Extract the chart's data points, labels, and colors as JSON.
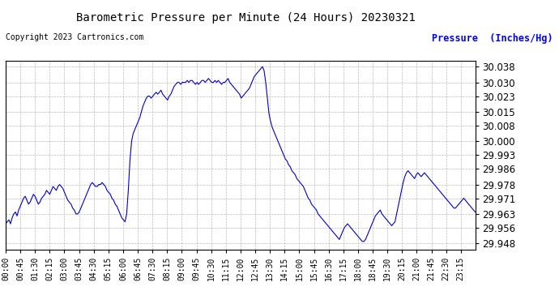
{
  "title": "Barometric Pressure per Minute (24 Hours) 20230321",
  "copyright": "Copyright 2023 Cartronics.com",
  "ylabel": "Pressure  (Inches/Hg)",
  "line_color": "#0000cc",
  "bg_color": "#ffffff",
  "grid_color": "#aaaaaa",
  "ylim": [
    29.945,
    30.041
  ],
  "yticks": [
    29.948,
    29.956,
    29.963,
    29.971,
    29.978,
    29.986,
    29.993,
    30.0,
    30.008,
    30.015,
    30.023,
    30.03,
    30.038
  ],
  "xtick_labels": [
    "00:00",
    "00:45",
    "01:30",
    "02:15",
    "03:00",
    "03:45",
    "04:30",
    "05:15",
    "06:00",
    "06:45",
    "07:30",
    "08:15",
    "09:00",
    "09:45",
    "10:30",
    "11:15",
    "12:00",
    "12:45",
    "13:30",
    "14:15",
    "15:00",
    "15:45",
    "16:30",
    "17:15",
    "18:00",
    "18:45",
    "19:30",
    "20:15",
    "21:00",
    "21:45",
    "22:30",
    "23:15"
  ],
  "pressure_values": [
    29.958,
    29.959,
    29.96,
    29.958,
    29.961,
    29.963,
    29.964,
    29.962,
    29.965,
    29.967,
    29.969,
    29.971,
    29.972,
    29.97,
    29.968,
    29.969,
    29.971,
    29.973,
    29.972,
    29.97,
    29.968,
    29.969,
    29.971,
    29.972,
    29.973,
    29.975,
    29.974,
    29.973,
    29.975,
    29.977,
    29.976,
    29.975,
    29.977,
    29.978,
    29.977,
    29.976,
    29.974,
    29.972,
    29.97,
    29.969,
    29.968,
    29.966,
    29.965,
    29.963,
    29.963,
    29.964,
    29.966,
    29.968,
    29.97,
    29.972,
    29.974,
    29.976,
    29.978,
    29.979,
    29.978,
    29.977,
    29.977,
    29.978,
    29.978,
    29.979,
    29.978,
    29.977,
    29.975,
    29.974,
    29.973,
    29.971,
    29.97,
    29.968,
    29.967,
    29.965,
    29.963,
    29.961,
    29.96,
    29.959,
    29.963,
    29.975,
    29.99,
    30.0,
    30.004,
    30.006,
    30.008,
    30.01,
    30.012,
    30.015,
    30.018,
    30.02,
    30.022,
    30.023,
    30.023,
    30.022,
    30.023,
    30.024,
    30.025,
    30.024,
    30.025,
    30.026,
    30.024,
    30.023,
    30.022,
    30.021,
    30.023,
    30.024,
    30.026,
    30.028,
    30.029,
    30.03,
    30.03,
    30.029,
    30.03,
    30.03,
    30.03,
    30.031,
    30.03,
    30.031,
    30.031,
    30.03,
    30.029,
    30.03,
    30.029,
    30.03,
    30.031,
    30.031,
    30.03,
    30.031,
    30.032,
    30.031,
    30.03,
    30.03,
    30.031,
    30.03,
    30.031,
    30.03,
    30.029,
    30.03,
    30.03,
    30.031,
    30.032,
    30.03,
    30.029,
    30.028,
    30.027,
    30.026,
    30.025,
    30.024,
    30.022,
    30.023,
    30.024,
    30.025,
    30.026,
    30.027,
    30.029,
    30.031,
    30.033,
    30.034,
    30.035,
    30.036,
    30.037,
    30.038,
    30.036,
    30.03,
    30.022,
    30.014,
    30.01,
    30.007,
    30.005,
    30.003,
    30.001,
    29.999,
    29.997,
    29.995,
    29.993,
    29.991,
    29.99,
    29.988,
    29.987,
    29.985,
    29.984,
    29.983,
    29.981,
    29.98,
    29.979,
    29.978,
    29.977,
    29.975,
    29.973,
    29.971,
    29.97,
    29.968,
    29.967,
    29.966,
    29.965,
    29.963,
    29.962,
    29.961,
    29.96,
    29.959,
    29.958,
    29.957,
    29.956,
    29.955,
    29.954,
    29.953,
    29.952,
    29.951,
    29.95,
    29.952,
    29.954,
    29.956,
    29.957,
    29.958,
    29.957,
    29.956,
    29.955,
    29.954,
    29.953,
    29.952,
    29.951,
    29.95,
    29.949,
    29.949,
    29.95,
    29.952,
    29.954,
    29.956,
    29.958,
    29.96,
    29.962,
    29.963,
    29.964,
    29.965,
    29.963,
    29.962,
    29.961,
    29.96,
    29.959,
    29.958,
    29.957,
    29.958,
    29.959,
    29.963,
    29.967,
    29.971,
    29.975,
    29.979,
    29.982,
    29.984,
    29.985,
    29.984,
    29.983,
    29.982,
    29.981,
    29.983,
    29.984,
    29.983,
    29.982,
    29.983,
    29.984,
    29.983,
    29.982,
    29.981,
    29.98,
    29.979,
    29.978,
    29.977,
    29.976,
    29.975,
    29.974,
    29.973,
    29.972,
    29.971,
    29.97,
    29.969,
    29.968,
    29.967,
    29.966,
    29.966,
    29.967,
    29.968,
    29.969,
    29.97,
    29.971,
    29.97,
    29.969,
    29.968,
    29.967,
    29.966,
    29.965,
    29.964
  ]
}
